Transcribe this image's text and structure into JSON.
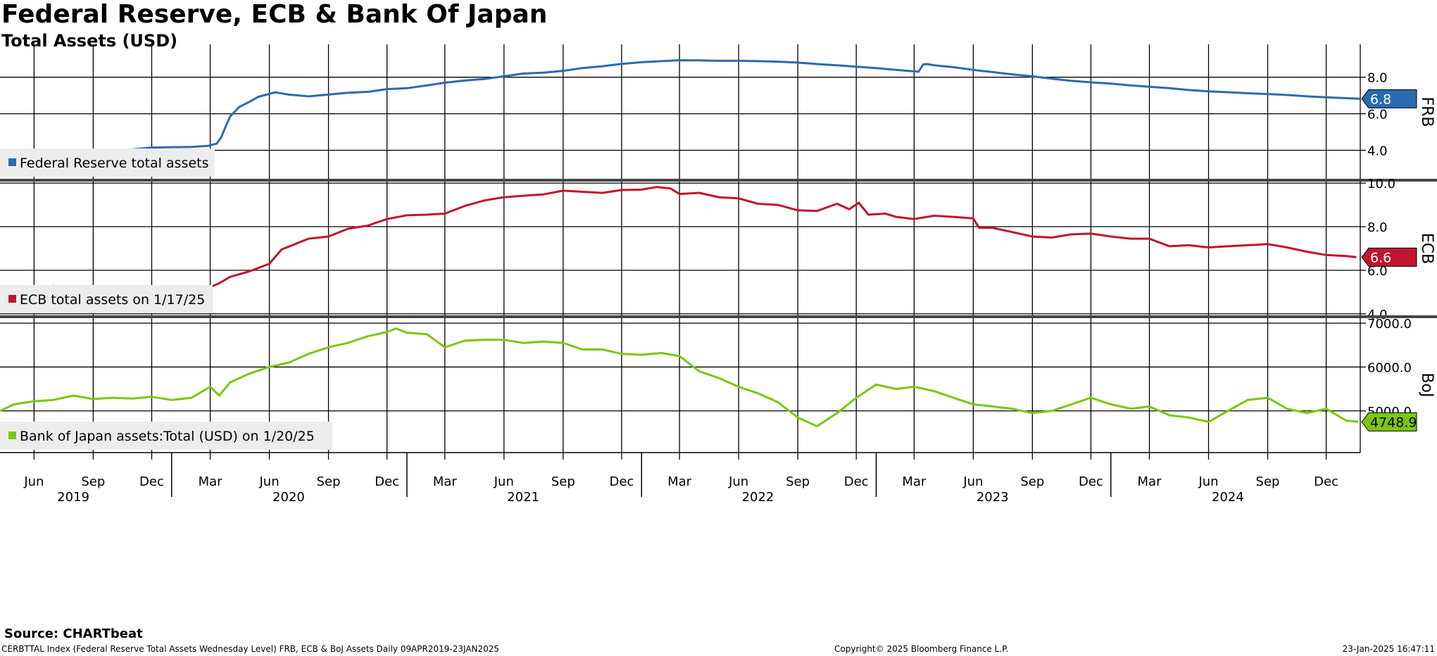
{
  "title": "Federal Reserve, ECB & Bank Of Japan",
  "subtitle": "Total Assets (USD)",
  "source": "Source: CHARTbeat",
  "footer": {
    "left": "CERBTTAL Index (Federal Reserve Total Assets Wednesday Level) FRB, ECB & BoJ Assets  Daily 09APR2019-23JAN2025",
    "center": "Copyright© 2025 Bloomberg Finance L.P.",
    "right": "23-Jan-2025 16:47:11"
  },
  "chart_data": {
    "type": "line",
    "x_start": "2019-04-09",
    "x_end": "2025-01-23",
    "month_ticks": [
      {
        "label": "Jun",
        "date": "2019-06-01"
      },
      {
        "label": "Sep",
        "date": "2019-09-01"
      },
      {
        "label": "Dec",
        "date": "2019-12-01"
      },
      {
        "label": "Mar",
        "date": "2020-03-01"
      },
      {
        "label": "Jun",
        "date": "2020-06-01"
      },
      {
        "label": "Sep",
        "date": "2020-09-01"
      },
      {
        "label": "Dec",
        "date": "2020-12-01"
      },
      {
        "label": "Mar",
        "date": "2021-03-01"
      },
      {
        "label": "Jun",
        "date": "2021-06-01"
      },
      {
        "label": "Sep",
        "date": "2021-09-01"
      },
      {
        "label": "Dec",
        "date": "2021-12-01"
      },
      {
        "label": "Mar",
        "date": "2022-03-01"
      },
      {
        "label": "Jun",
        "date": "2022-06-01"
      },
      {
        "label": "Sep",
        "date": "2022-09-01"
      },
      {
        "label": "Dec",
        "date": "2022-12-01"
      },
      {
        "label": "Mar",
        "date": "2023-03-01"
      },
      {
        "label": "Jun",
        "date": "2023-06-01"
      },
      {
        "label": "Sep",
        "date": "2023-09-01"
      },
      {
        "label": "Dec",
        "date": "2023-12-01"
      },
      {
        "label": "Mar",
        "date": "2024-03-01"
      },
      {
        "label": "Jun",
        "date": "2024-06-01"
      },
      {
        "label": "Sep",
        "date": "2024-09-01"
      },
      {
        "label": "Dec",
        "date": "2024-12-01"
      }
    ],
    "year_labels": [
      {
        "label": "2019",
        "date": "2019-08-01"
      },
      {
        "label": "2020",
        "date": "2020-07-01"
      },
      {
        "label": "2021",
        "date": "2021-07-01"
      },
      {
        "label": "2022",
        "date": "2022-07-01"
      },
      {
        "label": "2023",
        "date": "2023-07-01"
      },
      {
        "label": "2024",
        "date": "2024-07-01"
      }
    ],
    "year_boundaries": [
      "2020-01-01",
      "2021-01-01",
      "2022-01-01",
      "2023-01-01",
      "2024-01-01"
    ],
    "panels": [
      {
        "id": "frb",
        "axis_title": "FRB",
        "color": "#2a6bb0",
        "yticks": [
          "8.0",
          "6.0",
          "4.0"
        ],
        "ylim": [
          2.4,
          9.8
        ],
        "legend": "Federal Reserve total assets",
        "last_value": "6.8",
        "series": [
          [
            "2019-04-09",
            3.92
          ],
          [
            "2019-05-01",
            3.88
          ],
          [
            "2019-06-01",
            3.83
          ],
          [
            "2019-07-01",
            3.79
          ],
          [
            "2019-08-01",
            3.77
          ],
          [
            "2019-09-01",
            3.8
          ],
          [
            "2019-10-01",
            3.95
          ],
          [
            "2019-11-01",
            4.05
          ],
          [
            "2019-12-01",
            4.15
          ],
          [
            "2020-01-01",
            4.17
          ],
          [
            "2020-02-01",
            4.18
          ],
          [
            "2020-02-26",
            4.24
          ],
          [
            "2020-03-11",
            4.36
          ],
          [
            "2020-03-18",
            4.7
          ],
          [
            "2020-03-25",
            5.3
          ],
          [
            "2020-04-01",
            5.85
          ],
          [
            "2020-04-15",
            6.37
          ],
          [
            "2020-05-01",
            6.65
          ],
          [
            "2020-05-15",
            6.93
          ],
          [
            "2020-06-10",
            7.17
          ],
          [
            "2020-07-01",
            7.05
          ],
          [
            "2020-08-01",
            6.95
          ],
          [
            "2020-09-01",
            7.05
          ],
          [
            "2020-10-01",
            7.15
          ],
          [
            "2020-11-01",
            7.2
          ],
          [
            "2020-12-01",
            7.35
          ],
          [
            "2021-01-01",
            7.4
          ],
          [
            "2021-02-01",
            7.55
          ],
          [
            "2021-03-01",
            7.7
          ],
          [
            "2021-04-01",
            7.82
          ],
          [
            "2021-05-01",
            7.9
          ],
          [
            "2021-06-01",
            8.05
          ],
          [
            "2021-07-01",
            8.2
          ],
          [
            "2021-08-01",
            8.25
          ],
          [
            "2021-09-01",
            8.35
          ],
          [
            "2021-10-01",
            8.5
          ],
          [
            "2021-11-01",
            8.6
          ],
          [
            "2021-12-01",
            8.73
          ],
          [
            "2022-01-01",
            8.82
          ],
          [
            "2022-02-01",
            8.88
          ],
          [
            "2022-03-01",
            8.93
          ],
          [
            "2022-04-01",
            8.92
          ],
          [
            "2022-05-01",
            8.9
          ],
          [
            "2022-06-01",
            8.9
          ],
          [
            "2022-07-01",
            8.88
          ],
          [
            "2022-08-01",
            8.85
          ],
          [
            "2022-09-01",
            8.8
          ],
          [
            "2022-10-01",
            8.72
          ],
          [
            "2022-11-01",
            8.65
          ],
          [
            "2022-12-01",
            8.58
          ],
          [
            "2023-01-01",
            8.5
          ],
          [
            "2023-02-01",
            8.4
          ],
          [
            "2023-03-08",
            8.3
          ],
          [
            "2023-03-15",
            8.7
          ],
          [
            "2023-03-22",
            8.72
          ],
          [
            "2023-04-01",
            8.65
          ],
          [
            "2023-05-01",
            8.55
          ],
          [
            "2023-06-01",
            8.4
          ],
          [
            "2023-07-01",
            8.28
          ],
          [
            "2023-08-01",
            8.15
          ],
          [
            "2023-09-01",
            8.05
          ],
          [
            "2023-10-01",
            7.92
          ],
          [
            "2023-11-01",
            7.8
          ],
          [
            "2023-12-01",
            7.72
          ],
          [
            "2024-01-01",
            7.65
          ],
          [
            "2024-02-01",
            7.55
          ],
          [
            "2024-03-01",
            7.48
          ],
          [
            "2024-04-01",
            7.4
          ],
          [
            "2024-05-01",
            7.3
          ],
          [
            "2024-06-01",
            7.23
          ],
          [
            "2024-07-01",
            7.18
          ],
          [
            "2024-08-01",
            7.12
          ],
          [
            "2024-09-01",
            7.08
          ],
          [
            "2024-10-01",
            7.03
          ],
          [
            "2024-11-01",
            6.95
          ],
          [
            "2024-12-01",
            6.9
          ],
          [
            "2025-01-01",
            6.85
          ],
          [
            "2025-01-22",
            6.82
          ]
        ]
      },
      {
        "id": "ecb",
        "axis_title": "ECB",
        "color": "#c0152f",
        "yticks": [
          "10.0",
          "8.0",
          "6.0",
          "4.0"
        ],
        "ylim": [
          3.9,
          10.1
        ],
        "legend": "ECB total assets on 1/17/25",
        "last_value": "6.6",
        "series": [
          [
            "2019-04-09",
            5.25
          ],
          [
            "2019-05-01",
            5.2
          ],
          [
            "2019-06-01",
            5.22
          ],
          [
            "2019-07-01",
            5.28
          ],
          [
            "2019-08-01",
            5.18
          ],
          [
            "2019-09-01",
            5.05
          ],
          [
            "2019-10-01",
            5.12
          ],
          [
            "2019-11-01",
            5.15
          ],
          [
            "2019-12-01",
            5.2
          ],
          [
            "2020-01-01",
            5.15
          ],
          [
            "2020-02-01",
            5.05
          ],
          [
            "2020-02-20",
            5.1
          ],
          [
            "2020-03-15",
            5.4
          ],
          [
            "2020-04-01",
            5.7
          ],
          [
            "2020-05-01",
            5.95
          ],
          [
            "2020-06-01",
            6.3
          ],
          [
            "2020-06-20",
            6.95
          ],
          [
            "2020-07-15",
            7.25
          ],
          [
            "2020-08-01",
            7.45
          ],
          [
            "2020-09-01",
            7.55
          ],
          [
            "2020-10-01",
            7.9
          ],
          [
            "2020-11-01",
            8.05
          ],
          [
            "2020-12-01",
            8.35
          ],
          [
            "2021-01-01",
            8.52
          ],
          [
            "2021-02-01",
            8.55
          ],
          [
            "2021-03-01",
            8.6
          ],
          [
            "2021-04-01",
            8.95
          ],
          [
            "2021-05-01",
            9.2
          ],
          [
            "2021-06-01",
            9.35
          ],
          [
            "2021-07-01",
            9.42
          ],
          [
            "2021-08-01",
            9.48
          ],
          [
            "2021-09-01",
            9.65
          ],
          [
            "2021-10-01",
            9.6
          ],
          [
            "2021-11-01",
            9.55
          ],
          [
            "2021-12-01",
            9.68
          ],
          [
            "2022-01-01",
            9.7
          ],
          [
            "2022-01-25",
            9.82
          ],
          [
            "2022-02-15",
            9.75
          ],
          [
            "2022-03-01",
            9.5
          ],
          [
            "2022-04-01",
            9.55
          ],
          [
            "2022-05-01",
            9.35
          ],
          [
            "2022-06-01",
            9.3
          ],
          [
            "2022-07-01",
            9.05
          ],
          [
            "2022-08-01",
            9.0
          ],
          [
            "2022-09-01",
            8.75
          ],
          [
            "2022-10-01",
            8.72
          ],
          [
            "2022-11-01",
            9.05
          ],
          [
            "2022-11-20",
            8.8
          ],
          [
            "2022-12-05",
            9.1
          ],
          [
            "2022-12-20",
            8.55
          ],
          [
            "2023-01-15",
            8.6
          ],
          [
            "2023-02-01",
            8.45
          ],
          [
            "2023-03-01",
            8.35
          ],
          [
            "2023-04-01",
            8.5
          ],
          [
            "2023-05-01",
            8.45
          ],
          [
            "2023-06-01",
            8.38
          ],
          [
            "2023-06-10",
            7.95
          ],
          [
            "2023-07-01",
            7.95
          ],
          [
            "2023-08-01",
            7.75
          ],
          [
            "2023-09-01",
            7.55
          ],
          [
            "2023-10-01",
            7.5
          ],
          [
            "2023-11-01",
            7.65
          ],
          [
            "2023-12-01",
            7.68
          ],
          [
            "2024-01-01",
            7.55
          ],
          [
            "2024-02-01",
            7.45
          ],
          [
            "2024-03-01",
            7.45
          ],
          [
            "2024-04-01",
            7.1
          ],
          [
            "2024-05-01",
            7.15
          ],
          [
            "2024-06-01",
            7.05
          ],
          [
            "2024-07-01",
            7.1
          ],
          [
            "2024-08-01",
            7.15
          ],
          [
            "2024-09-01",
            7.2
          ],
          [
            "2024-10-01",
            7.05
          ],
          [
            "2024-11-01",
            6.85
          ],
          [
            "2024-12-01",
            6.7
          ],
          [
            "2025-01-01",
            6.65
          ],
          [
            "2025-01-17",
            6.6
          ]
        ]
      },
      {
        "id": "boj",
        "axis_title": "BoJ",
        "color": "#7dc60e",
        "yticks": [
          "7000.0",
          "6000.0",
          "5000.0"
        ],
        "ylim": [
          4050,
          7130
        ],
        "legend": "Bank of Japan assets:Total (USD)  on 1/20/25",
        "last_value": "4748.9",
        "series": [
          [
            "2019-04-09",
            5000
          ],
          [
            "2019-05-01",
            5150
          ],
          [
            "2019-06-01",
            5220
          ],
          [
            "2019-07-01",
            5250
          ],
          [
            "2019-08-01",
            5350
          ],
          [
            "2019-09-01",
            5270
          ],
          [
            "2019-10-01",
            5300
          ],
          [
            "2019-11-01",
            5280
          ],
          [
            "2019-12-01",
            5320
          ],
          [
            "2020-01-01",
            5250
          ],
          [
            "2020-02-01",
            5300
          ],
          [
            "2020-03-01",
            5550
          ],
          [
            "2020-03-15",
            5350
          ],
          [
            "2020-04-01",
            5650
          ],
          [
            "2020-05-01",
            5850
          ],
          [
            "2020-06-01",
            6000
          ],
          [
            "2020-07-01",
            6100
          ],
          [
            "2020-08-01",
            6300
          ],
          [
            "2020-09-01",
            6450
          ],
          [
            "2020-10-01",
            6550
          ],
          [
            "2020-11-01",
            6700
          ],
          [
            "2020-12-01",
            6800
          ],
          [
            "2020-12-15",
            6880
          ],
          [
            "2021-01-01",
            6780
          ],
          [
            "2021-02-01",
            6750
          ],
          [
            "2021-03-01",
            6450
          ],
          [
            "2021-04-01",
            6600
          ],
          [
            "2021-05-01",
            6620
          ],
          [
            "2021-06-01",
            6620
          ],
          [
            "2021-07-01",
            6550
          ],
          [
            "2021-08-01",
            6580
          ],
          [
            "2021-09-01",
            6550
          ],
          [
            "2021-10-01",
            6400
          ],
          [
            "2021-11-01",
            6400
          ],
          [
            "2021-12-01",
            6300
          ],
          [
            "2022-01-01",
            6280
          ],
          [
            "2022-02-01",
            6320
          ],
          [
            "2022-03-01",
            6250
          ],
          [
            "2022-04-01",
            5900
          ],
          [
            "2022-05-01",
            5750
          ],
          [
            "2022-06-01",
            5550
          ],
          [
            "2022-07-01",
            5400
          ],
          [
            "2022-08-01",
            5200
          ],
          [
            "2022-09-01",
            4850
          ],
          [
            "2022-10-01",
            4650
          ],
          [
            "2022-11-01",
            4950
          ],
          [
            "2022-12-01",
            5300
          ],
          [
            "2023-01-01",
            5600
          ],
          [
            "2023-02-01",
            5500
          ],
          [
            "2023-03-01",
            5550
          ],
          [
            "2023-04-01",
            5450
          ],
          [
            "2023-05-01",
            5300
          ],
          [
            "2023-06-01",
            5150
          ],
          [
            "2023-07-01",
            5100
          ],
          [
            "2023-08-01",
            5050
          ],
          [
            "2023-09-01",
            4950
          ],
          [
            "2023-10-01",
            5000
          ],
          [
            "2023-11-01",
            5150
          ],
          [
            "2023-12-01",
            5300
          ],
          [
            "2024-01-01",
            5150
          ],
          [
            "2024-02-01",
            5050
          ],
          [
            "2024-03-01",
            5100
          ],
          [
            "2024-04-01",
            4900
          ],
          [
            "2024-05-01",
            4850
          ],
          [
            "2024-06-01",
            4750
          ],
          [
            "2024-07-01",
            5000
          ],
          [
            "2024-08-01",
            5250
          ],
          [
            "2024-09-01",
            5300
          ],
          [
            "2024-10-01",
            5050
          ],
          [
            "2024-11-01",
            4950
          ],
          [
            "2024-12-01",
            5050
          ],
          [
            "2025-01-01",
            4780
          ],
          [
            "2025-01-20",
            4749
          ]
        ]
      }
    ]
  }
}
